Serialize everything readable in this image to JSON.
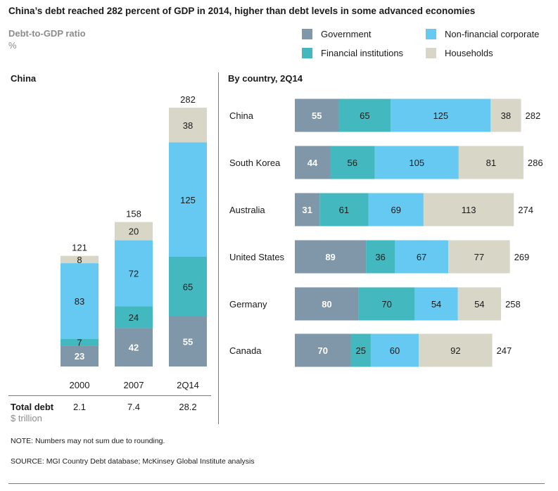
{
  "title": "China’s debt reached 282 percent of GDP in 2014, higher than debt levels in some advanced economies",
  "subtitle": "Debt-to-GDP ratio",
  "unit": "%",
  "legend": [
    {
      "label": "Government",
      "color": "#7f97a8"
    },
    {
      "label": "Non-financial corporate",
      "color": "#66c9f1"
    },
    {
      "label": "Financial institutions",
      "color": "#43b9bf"
    },
    {
      "label": "Households",
      "color": "#d7d6c7"
    }
  ],
  "left_panel_title": "China",
  "right_panel_title": "By country, 2Q14",
  "total_debt": {
    "label": "Total debt",
    "unit": "$ trillion",
    "values": [
      "2.1",
      "7.4",
      "28.2"
    ]
  },
  "note": "NOTE: Numbers may not sum due to rounding.",
  "source": "SOURCE:  MGI Country Debt database; McKinsey Global Institute analysis",
  "chart_data": [
    {
      "type": "bar",
      "orientation": "vertical",
      "stacked": true,
      "title": "China",
      "categories": [
        "2000",
        "2007",
        "2Q14"
      ],
      "series": [
        {
          "name": "Government",
          "values": [
            23,
            42,
            55
          ],
          "labels": [
            "23",
            "42",
            "55"
          ]
        },
        {
          "name": "Financial institutions",
          "values": [
            7,
            24,
            65
          ],
          "labels": [
            "7",
            "24",
            "65"
          ]
        },
        {
          "name": "Non-financial corporate",
          "values": [
            83,
            72,
            125
          ],
          "labels": [
            "83",
            "72",
            "125"
          ]
        },
        {
          "name": "Households",
          "values": [
            8,
            20,
            38
          ],
          "labels": [
            "8",
            "20",
            "38"
          ]
        }
      ],
      "totals": [
        "121",
        "158",
        "282"
      ]
    },
    {
      "type": "bar",
      "orientation": "horizontal",
      "stacked": true,
      "title": "By country, 2Q14",
      "categories": [
        "China",
        "South Korea",
        "Australia",
        "United States",
        "Germany",
        "Canada"
      ],
      "series": [
        {
          "name": "Government",
          "values": [
            55,
            44,
            31,
            89,
            80,
            70
          ],
          "labels": [
            "55",
            "44",
            "31",
            "89",
            "80",
            "70"
          ]
        },
        {
          "name": "Financial institutions",
          "values": [
            65,
            56,
            61,
            36,
            70,
            25
          ],
          "labels": [
            "65",
            "56",
            "61",
            "36",
            "70",
            "25"
          ]
        },
        {
          "name": "Non-financial corporate",
          "values": [
            125,
            105,
            69,
            67,
            54,
            60
          ],
          "labels": [
            "125",
            "105",
            "69",
            "67",
            "54",
            "60"
          ]
        },
        {
          "name": "Households",
          "values": [
            38,
            81,
            113,
            77,
            54,
            92
          ],
          "labels": [
            "38",
            "81",
            "113",
            "77",
            "54",
            "92"
          ]
        }
      ],
      "totals": [
        "282",
        "286",
        "274",
        "269",
        "258",
        "247"
      ]
    }
  ]
}
